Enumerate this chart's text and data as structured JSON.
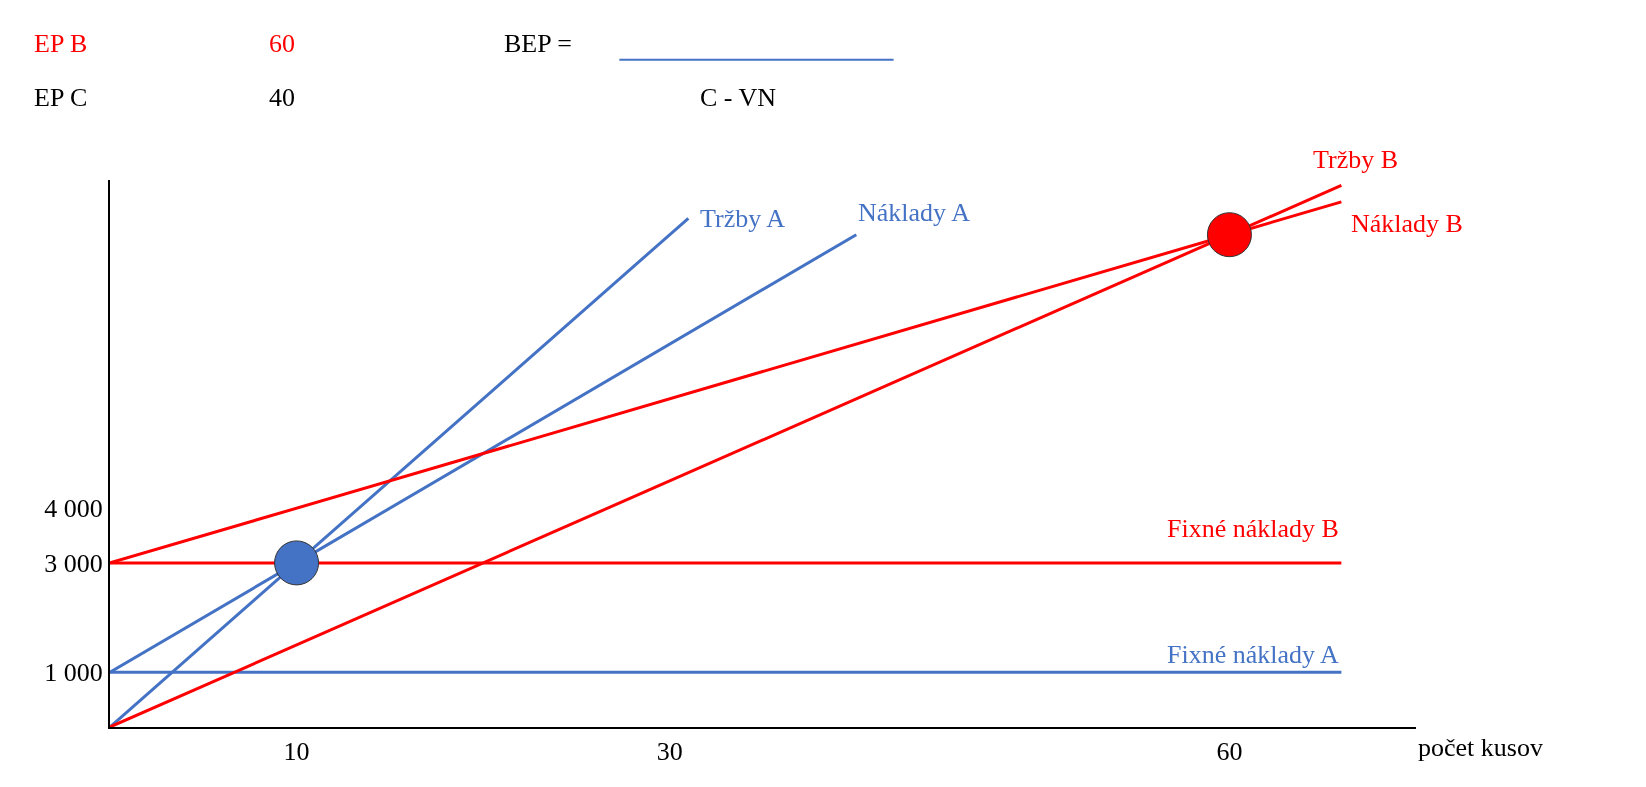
{
  "chart_data": {
    "type": "line",
    "xlabel": "počet kusov",
    "xlim": [
      0,
      70
    ],
    "xticks": [
      10,
      30,
      60
    ],
    "ylim": [
      0,
      10000
    ],
    "yticks": [
      {
        "value": 1000,
        "label": "1 000"
      },
      {
        "value": 3000,
        "label": "3 000"
      },
      {
        "value": 4000,
        "label": "4 000"
      }
    ],
    "series": [
      {
        "name": "Fixné náklady A",
        "color": "#4472c4",
        "x": [
          0,
          66
        ],
        "values": [
          1000,
          1000
        ]
      },
      {
        "name": "Náklady A",
        "color": "#4472c4",
        "x": [
          0,
          10,
          40
        ],
        "values": [
          1000,
          3000,
          9000
        ]
      },
      {
        "name": "Tržby A",
        "color": "#4472c4",
        "x": [
          0,
          10,
          31
        ],
        "values": [
          0,
          3000,
          9300
        ]
      },
      {
        "name": "Fixné náklady B",
        "color": "#ff0000",
        "x": [
          0,
          66
        ],
        "values": [
          3000,
          3000
        ]
      },
      {
        "name": "Náklady B",
        "color": "#ff0000",
        "x": [
          0,
          60,
          66
        ],
        "values": [
          3000,
          9000,
          9600
        ]
      },
      {
        "name": "Tržby B",
        "color": "#ff0000",
        "x": [
          0,
          60,
          66
        ],
        "values": [
          0,
          9000,
          9900
        ]
      },
      {
        "type": "scatter",
        "marker": "circle",
        "color": "#4472c4",
        "x": [
          10
        ],
        "values": [
          3000
        ]
      },
      {
        "type": "scatter",
        "marker": "circle",
        "color": "#ff0000",
        "x": [
          60
        ],
        "values": [
          9000
        ]
      }
    ],
    "annotations": [
      "EP B",
      "60",
      "EP C",
      "40",
      "BEP =",
      "C - VN"
    ],
    "line_style": "solid",
    "legend": false
  }
}
